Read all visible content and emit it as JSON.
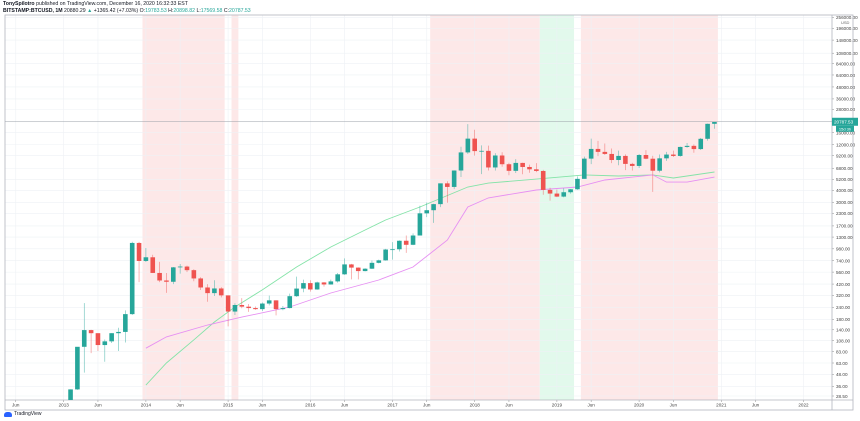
{
  "header": {
    "author": "TonySpilotro",
    "published": "published on TradingView.com, December 16, 2020 16:32:33 EST",
    "symbol": "BITSTAMP:BTCUSD, 1M",
    "last": "20880.29",
    "change_arrow": "▲",
    "change": "+1365.42 (+7.03%)",
    "o_label": "O:",
    "o": "19783.53",
    "h_label": "H:",
    "h": "20898.82",
    "l_label": "L:",
    "l": "17569.58",
    "c_label": "C:",
    "c": "20787.53"
  },
  "footer": {
    "brand": "TradingView",
    "logo_icon": "tradingview-cloud-icon"
  },
  "chart_data": {
    "type": "candlestick",
    "interval": "1M",
    "y_scale": "log",
    "ylim": [
      28.5,
      256000
    ],
    "grid": true,
    "currency_label": "USD",
    "last_price_label": "20787.53",
    "countdown_label": "15d 3h",
    "colors": {
      "up": "#26a69a",
      "down": "#ef5350",
      "ma_green": "#84e3a8",
      "ma_magenta": "#e690f2",
      "shade_red": "#fde8e8",
      "shade_green": "#e2f9ec",
      "last_price": "#26a69a"
    },
    "price_ticks": [
      "256000.00",
      "196000.00",
      "148000.00",
      "108000.00",
      "84000.00",
      "64000.00",
      "48000.00",
      "36000.00",
      "28000.00",
      "16000.00",
      "12000.00",
      "9200.00",
      "6800.00",
      "5200.00",
      "4000.00",
      "3000.00",
      "2300.00",
      "1700.00",
      "1300.00",
      "980.00",
      "740.00",
      "560.00",
      "420.00",
      "320.00",
      "240.00",
      "180.00",
      "140.00",
      "108.00",
      "83.00",
      "63.00",
      "48.00",
      "36.00",
      "28.50"
    ],
    "time_ticks": [
      {
        "date": "2012-06",
        "label": "Jun"
      },
      {
        "date": "2013-01",
        "label": "2013"
      },
      {
        "date": "2013-06",
        "label": "Jun"
      },
      {
        "date": "2014-01",
        "label": "2014"
      },
      {
        "date": "2014-06",
        "label": "Jun"
      },
      {
        "date": "2015-01",
        "label": "2015"
      },
      {
        "date": "2015-06",
        "label": "Jun"
      },
      {
        "date": "2016-01",
        "label": "2016"
      },
      {
        "date": "2016-06",
        "label": "Jun"
      },
      {
        "date": "2017-01",
        "label": "2017"
      },
      {
        "date": "2017-06",
        "label": "Jun"
      },
      {
        "date": "2018-01",
        "label": "2018"
      },
      {
        "date": "2018-06",
        "label": "Jun"
      },
      {
        "date": "2019-01",
        "label": "2019"
      },
      {
        "date": "2019-06",
        "label": "Jun"
      },
      {
        "date": "2020-01",
        "label": "2020"
      },
      {
        "date": "2020-06",
        "label": "Jun"
      },
      {
        "date": "2021-01",
        "label": "2021"
      },
      {
        "date": "2021-06",
        "label": "Jun"
      },
      {
        "date": "2022-01",
        "label": "2022"
      }
    ],
    "shaded_ranges": [
      {
        "from": "2014-01",
        "to": "2014-12",
        "kind": "red"
      },
      {
        "from": "2015-02",
        "to": "2015-02",
        "kind": "red"
      },
      {
        "from": "2017-07",
        "to": "2018-10",
        "kind": "red"
      },
      {
        "from": "2018-11",
        "to": "2019-03",
        "kind": "green"
      },
      {
        "from": "2019-05",
        "to": "2020-12",
        "kind": "red"
      }
    ],
    "candles_columns": [
      "date",
      "open",
      "high",
      "low",
      "close"
    ],
    "candles": [
      [
        "2013-02",
        20.4,
        33.4,
        19.1,
        33.4
      ],
      [
        "2013-03",
        33.4,
        92,
        33,
        93
      ],
      [
        "2013-04",
        93,
        266,
        50,
        139
      ],
      [
        "2013-05",
        139,
        140,
        80,
        129
      ],
      [
        "2013-06",
        129,
        129,
        84,
        97
      ],
      [
        "2013-07",
        97,
        111,
        65,
        106
      ],
      [
        "2013-08",
        106,
        129,
        102,
        129
      ],
      [
        "2013-09",
        129,
        147,
        84,
        133
      ],
      [
        "2013-10",
        133,
        223,
        103,
        204
      ],
      [
        "2013-11",
        204,
        1163,
        200,
        1129
      ],
      [
        "2013-12",
        1129,
        1158,
        440,
        732
      ],
      [
        "2014-01",
        732,
        1000,
        714,
        800
      ],
      [
        "2014-02",
        800,
        850,
        550,
        549
      ],
      [
        "2014-03",
        549,
        717,
        440,
        458
      ],
      [
        "2014-04",
        458,
        548,
        340,
        444
      ],
      [
        "2014-05",
        444,
        633,
        420,
        628
      ],
      [
        "2014-06",
        628,
        680,
        540,
        640
      ],
      [
        "2014-07",
        640,
        655,
        560,
        587
      ],
      [
        "2014-08",
        587,
        600,
        450,
        481
      ],
      [
        "2014-09",
        481,
        495,
        364,
        387
      ],
      [
        "2014-10",
        387,
        420,
        275,
        338
      ],
      [
        "2014-11",
        338,
        460,
        315,
        378
      ],
      [
        "2014-12",
        378,
        390,
        305,
        320
      ],
      [
        "2015-01",
        320,
        320,
        152,
        217
      ],
      [
        "2015-02",
        217,
        265,
        200,
        254
      ],
      [
        "2015-03",
        254,
        300,
        235,
        244
      ],
      [
        "2015-04",
        244,
        260,
        215,
        236
      ],
      [
        "2015-05",
        236,
        245,
        226,
        230
      ],
      [
        "2015-06",
        230,
        270,
        220,
        263
      ],
      [
        "2015-07",
        263,
        318,
        252,
        284
      ],
      [
        "2015-08",
        284,
        285,
        198,
        230
      ],
      [
        "2015-09",
        230,
        248,
        224,
        236
      ],
      [
        "2015-10",
        236,
        334,
        234,
        314
      ],
      [
        "2015-11",
        314,
        502,
        309,
        377
      ],
      [
        "2015-12",
        377,
        467,
        345,
        430
      ],
      [
        "2016-01",
        430,
        460,
        350,
        369
      ],
      [
        "2016-02",
        369,
        445,
        366,
        437
      ],
      [
        "2016-03",
        437,
        440,
        395,
        416
      ],
      [
        "2016-04",
        416,
        467,
        415,
        448
      ],
      [
        "2016-05",
        448,
        548,
        435,
        531
      ],
      [
        "2016-06",
        531,
        780,
        524,
        674
      ],
      [
        "2016-07",
        674,
        683,
        470,
        624
      ],
      [
        "2016-08",
        624,
        628,
        470,
        574
      ],
      [
        "2016-09",
        574,
        615,
        570,
        608
      ],
      [
        "2016-10",
        608,
        740,
        604,
        700
      ],
      [
        "2016-11",
        700,
        755,
        690,
        743
      ],
      [
        "2016-12",
        743,
        980,
        738,
        964
      ],
      [
        "2017-01",
        964,
        1150,
        755,
        970
      ],
      [
        "2017-02",
        970,
        1200,
        920,
        1190
      ],
      [
        "2017-03",
        1190,
        1350,
        890,
        1080
      ],
      [
        "2017-04",
        1080,
        1420,
        1070,
        1350
      ],
      [
        "2017-05",
        1350,
        2760,
        1350,
        2300
      ],
      [
        "2017-06",
        2300,
        2980,
        2100,
        2480
      ],
      [
        "2017-07",
        2480,
        2900,
        1830,
        2870
      ],
      [
        "2017-08",
        2870,
        4700,
        2670,
        4730
      ],
      [
        "2017-09",
        4730,
        4980,
        2970,
        4340
      ],
      [
        "2017-10",
        4340,
        6470,
        4120,
        6440
      ],
      [
        "2017-11",
        6440,
        11400,
        5510,
        9950
      ],
      [
        "2017-12",
        9950,
        19666,
        9600,
        13860
      ],
      [
        "2018-01",
        13860,
        17170,
        9200,
        10270
      ],
      [
        "2018-02",
        10270,
        11780,
        5900,
        10330
      ],
      [
        "2018-03",
        10330,
        11700,
        6450,
        6930
      ],
      [
        "2018-04",
        6930,
        9770,
        6430,
        9240
      ],
      [
        "2018-05",
        9240,
        9990,
        7040,
        7490
      ],
      [
        "2018-06",
        7490,
        7770,
        5750,
        6390
      ],
      [
        "2018-07",
        6390,
        8480,
        6070,
        7730
      ],
      [
        "2018-08",
        7730,
        7760,
        5880,
        7010
      ],
      [
        "2018-09",
        7010,
        7410,
        6100,
        6630
      ],
      [
        "2018-10",
        6630,
        7680,
        6200,
        6370
      ],
      [
        "2018-11",
        6370,
        6540,
        3600,
        4040
      ],
      [
        "2018-12",
        4040,
        4250,
        3120,
        3700
      ],
      [
        "2019-01",
        3700,
        4080,
        3400,
        3440
      ],
      [
        "2019-02",
        3440,
        4200,
        3380,
        3820
      ],
      [
        "2019-03",
        3820,
        4130,
        3700,
        4100
      ],
      [
        "2019-04",
        4100,
        5600,
        4040,
        5270
      ],
      [
        "2019-05",
        5270,
        9000,
        5300,
        8570
      ],
      [
        "2019-06",
        8570,
        13880,
        7500,
        10820
      ],
      [
        "2019-07",
        10820,
        13130,
        9100,
        10080
      ],
      [
        "2019-08",
        10080,
        12330,
        9350,
        9590
      ],
      [
        "2019-09",
        9590,
        10930,
        7700,
        8290
      ],
      [
        "2019-10",
        8290,
        10380,
        7300,
        9150
      ],
      [
        "2019-11",
        9150,
        9500,
        6500,
        7550
      ],
      [
        "2019-12",
        7550,
        7750,
        6430,
        7190
      ],
      [
        "2020-01",
        7190,
        9580,
        6850,
        9350
      ],
      [
        "2020-02",
        9350,
        10500,
        8450,
        8550
      ],
      [
        "2020-03",
        8550,
        9190,
        3850,
        6410
      ],
      [
        "2020-04",
        6410,
        9460,
        6160,
        8630
      ],
      [
        "2020-05",
        8630,
        10070,
        8110,
        9450
      ],
      [
        "2020-06",
        9450,
        10390,
        8900,
        9140
      ],
      [
        "2020-07",
        9140,
        11450,
        8960,
        11350
      ],
      [
        "2020-08",
        11350,
        12480,
        11100,
        11650
      ],
      [
        "2020-09",
        11650,
        12070,
        9880,
        10780
      ],
      [
        "2020-10",
        10780,
        14100,
        10550,
        13800
      ],
      [
        "2020-11",
        13800,
        19860,
        13210,
        19783.53
      ],
      [
        "2020-12",
        19783.53,
        20898.82,
        17569.58,
        20787.53
      ]
    ],
    "series": [
      {
        "color_key": "ma_green",
        "points": [
          [
            "2014-01",
            37
          ],
          [
            "2014-04",
            63
          ],
          [
            "2014-08",
            110
          ],
          [
            "2014-11",
            169
          ],
          [
            "2015-02",
            242
          ],
          [
            "2015-06",
            365
          ],
          [
            "2015-11",
            633
          ],
          [
            "2016-04",
            1023
          ],
          [
            "2016-09",
            1540
          ],
          [
            "2016-12",
            1958
          ],
          [
            "2017-05",
            2680
          ],
          [
            "2017-12",
            4330
          ],
          [
            "2018-03",
            4760
          ],
          [
            "2018-10",
            5240
          ],
          [
            "2019-05",
            5790
          ],
          [
            "2019-10",
            5650
          ],
          [
            "2020-03",
            5790
          ],
          [
            "2020-06",
            5380
          ],
          [
            "2020-12",
            6210
          ]
        ]
      },
      {
        "color_key": "ma_magenta",
        "points": [
          [
            "2014-01",
            90
          ],
          [
            "2014-04",
            118
          ],
          [
            "2014-10",
            157
          ],
          [
            "2015-03",
            190
          ],
          [
            "2015-10",
            242
          ],
          [
            "2016-04",
            339
          ],
          [
            "2016-11",
            463
          ],
          [
            "2017-04",
            633
          ],
          [
            "2017-09",
            1210
          ],
          [
            "2017-12",
            2680
          ],
          [
            "2018-03",
            3330
          ],
          [
            "2018-10",
            4030
          ],
          [
            "2019-04",
            4330
          ],
          [
            "2019-08",
            5130
          ],
          [
            "2020-03",
            5790
          ],
          [
            "2020-05",
            4880
          ],
          [
            "2020-08",
            4880
          ],
          [
            "2020-12",
            5500
          ]
        ]
      }
    ]
  }
}
